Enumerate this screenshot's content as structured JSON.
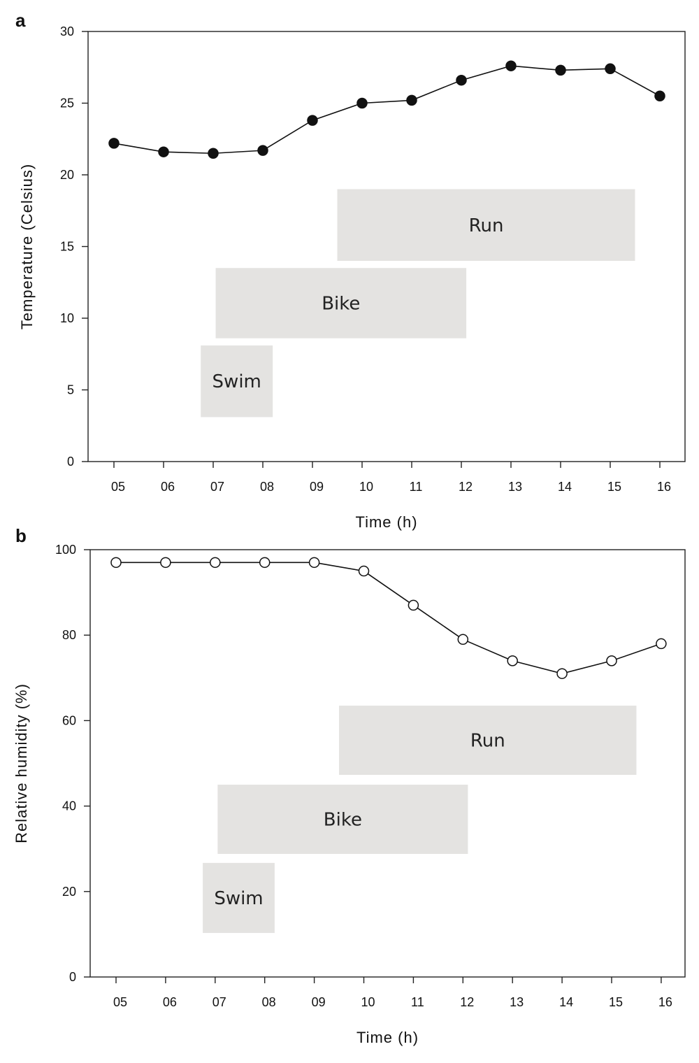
{
  "chart_data": [
    {
      "panel": "a",
      "type": "line",
      "xlabel": "Time (h)",
      "ylabel": "Temperature (Celsius)",
      "categories": [
        "05",
        "06",
        "07",
        "08",
        "09",
        "10",
        "11",
        "12",
        "13",
        "14",
        "15",
        "16"
      ],
      "yticks": [
        "0",
        "5",
        "10",
        "15",
        "20",
        "25",
        "30"
      ],
      "ylim": [
        0,
        30
      ],
      "series": [
        {
          "marker": "filled-circle",
          "values": [
            22.2,
            21.6,
            21.5,
            21.7,
            23.8,
            25.0,
            25.2,
            26.6,
            27.6,
            27.3,
            27.4,
            25.5
          ]
        }
      ],
      "activities": [
        {
          "label": "Swim",
          "x_start": 6.75,
          "x_end": 8.2,
          "y_low": 3.1,
          "y_high": 8.1
        },
        {
          "label": "Bike",
          "x_start": 7.05,
          "x_end": 12.1,
          "y_low": 8.6,
          "y_high": 13.5
        },
        {
          "label": "Run",
          "x_start": 9.5,
          "x_end": 15.5,
          "y_low": 14.0,
          "y_high": 19.0
        }
      ],
      "grid": false
    },
    {
      "panel": "b",
      "type": "line",
      "xlabel": "Time (h)",
      "ylabel": "Relative humidity (%)",
      "categories": [
        "05",
        "06",
        "07",
        "08",
        "09",
        "10",
        "11",
        "12",
        "13",
        "14",
        "15",
        "16"
      ],
      "yticks": [
        "0",
        "20",
        "40",
        "60",
        "80",
        "100"
      ],
      "ylim": [
        0,
        100
      ],
      "series": [
        {
          "marker": "open-circle",
          "values": [
            97,
            97,
            97,
            97,
            97,
            95,
            87,
            79,
            74,
            71,
            74,
            78
          ]
        }
      ],
      "activities": [
        {
          "label": "Swim",
          "x_start": 6.75,
          "x_end": 8.2,
          "y_low": 10.3,
          "y_high": 26.7
        },
        {
          "label": "Bike",
          "x_start": 7.05,
          "x_end": 12.1,
          "y_low": 28.8,
          "y_high": 45.0
        },
        {
          "label": "Run",
          "x_start": 9.5,
          "x_end": 15.5,
          "y_low": 47.3,
          "y_high": 63.5
        }
      ],
      "grid": false
    }
  ]
}
